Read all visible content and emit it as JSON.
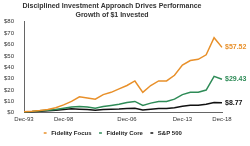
{
  "chart_data": {
    "type": "line",
    "title": [
      "Disciplined Investment Approach Drives Performance",
      "Growth of $1 Invested"
    ],
    "categories": [
      "Dec-93",
      null,
      null,
      null,
      null,
      "Dec-98",
      null,
      null,
      null,
      null,
      null,
      null,
      null,
      "Dec-06",
      null,
      null,
      null,
      null,
      null,
      null,
      "Dec-13",
      null,
      null,
      null,
      null,
      "Dec-18"
    ],
    "series": [
      {
        "name": "Fidelity Focus",
        "color": "#e8902a",
        "values": [
          1,
          1.4,
          2,
          3,
          4.5,
          7,
          10,
          14,
          13,
          12,
          16,
          18,
          21,
          24,
          28,
          18,
          24,
          28,
          28,
          33,
          42,
          46,
          47,
          51,
          66,
          57.52
        ]
      },
      {
        "name": "Fidelity Core",
        "color": "#2e8b57",
        "values": [
          1,
          1.2,
          1.7,
          2.2,
          3,
          4,
          5,
          5.5,
          5,
          4,
          5.5,
          6.5,
          7.5,
          9,
          10,
          6.5,
          8.5,
          10,
          10,
          12,
          16,
          18,
          18,
          20,
          32,
          29.43
        ]
      },
      {
        "name": "S&P 500",
        "color": "#111111",
        "values": [
          1,
          1,
          1.4,
          1.7,
          2.3,
          2.9,
          3.5,
          3.2,
          2.8,
          2.2,
          2.8,
          3.1,
          3.3,
          3.8,
          4,
          2.5,
          3.2,
          3.7,
          3.8,
          4.4,
          5.8,
          6.6,
          6.7,
          7.5,
          9.1,
          8.77
        ]
      }
    ],
    "ylim": [
      0,
      80
    ],
    "yticks": [
      {
        "value": 0,
        "label": "$0"
      },
      {
        "value": 10,
        "label": "$10"
      },
      {
        "value": 20,
        "label": "$20"
      },
      {
        "value": 30,
        "label": "$30"
      },
      {
        "value": 40,
        "label": "$40"
      },
      {
        "value": 50,
        "label": "$50"
      },
      {
        "value": 60,
        "label": "$60"
      },
      {
        "value": 70,
        "label": "$70"
      },
      {
        "value": 80,
        "label": "$80"
      }
    ],
    "annotations": [
      {
        "text": "$57.52",
        "series": "Fidelity Focus"
      },
      {
        "text": "$29.43",
        "series": "Fidelity Core"
      },
      {
        "text": "$8.77",
        "series": "S&P 500"
      }
    ],
    "grid": false,
    "legend": "bottom"
  }
}
